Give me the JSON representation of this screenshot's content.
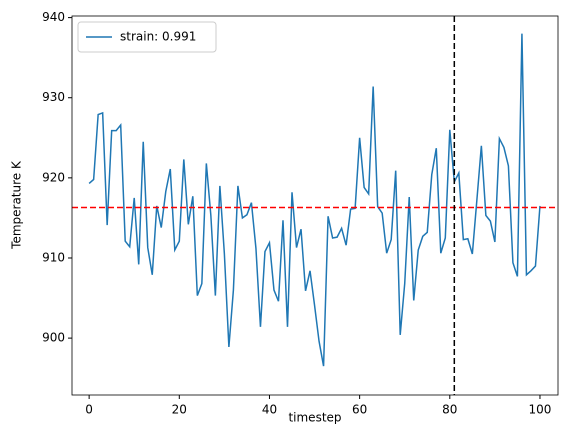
{
  "chart_data": {
    "type": "line",
    "x_label": "timestep",
    "y_label": "Temperature K",
    "x": [
      0,
      1,
      2,
      3,
      4,
      5,
      6,
      7,
      8,
      9,
      10,
      11,
      12,
      13,
      14,
      15,
      16,
      17,
      18,
      19,
      20,
      21,
      22,
      23,
      24,
      25,
      26,
      27,
      28,
      29,
      30,
      31,
      32,
      33,
      34,
      35,
      36,
      37,
      38,
      39,
      40,
      41,
      42,
      43,
      44,
      45,
      46,
      47,
      48,
      49,
      50,
      51,
      52,
      53,
      54,
      55,
      56,
      57,
      58,
      59,
      60,
      61,
      62,
      63,
      64,
      65,
      66,
      67,
      68,
      69,
      70,
      71,
      72,
      73,
      74,
      75,
      76,
      77,
      78,
      79,
      80,
      81,
      82,
      83,
      84,
      85,
      86,
      87,
      88,
      89,
      90,
      91,
      92,
      93,
      94,
      95,
      96,
      97,
      98,
      99,
      100
    ],
    "series": [
      {
        "name": "strain: 0.991",
        "color": "#1f77b4",
        "values": [
          919.3,
          919.8,
          927.9,
          928.1,
          914.1,
          925.9,
          925.9,
          926.6,
          912.1,
          911.4,
          917.5,
          909.2,
          924.5,
          911.3,
          907.9,
          916.5,
          913.8,
          918.3,
          921.1,
          911.0,
          912.1,
          922.3,
          914.2,
          917.7,
          905.3,
          906.8,
          921.8,
          915.3,
          905.3,
          919.0,
          910.5,
          898.9,
          906.0,
          919.0,
          915.0,
          915.4,
          916.9,
          911.2,
          901.4,
          910.8,
          911.9,
          906.0,
          904.6,
          914.7,
          901.4,
          918.2,
          911.3,
          913.6,
          905.9,
          908.4,
          904.1,
          899.6,
          896.5,
          915.2,
          912.5,
          912.6,
          913.7,
          911.6,
          916.1,
          916.2,
          925.0,
          918.8,
          918.0,
          931.4,
          916.4,
          915.6,
          910.6,
          912.3,
          920.9,
          900.4,
          906.8,
          917.6,
          904.7,
          911.0,
          912.7,
          913.2,
          920.4,
          923.7,
          910.6,
          912.5,
          926.0,
          919.5,
          920.6,
          912.3,
          912.4,
          910.5,
          917.2,
          924.0,
          915.3,
          914.6,
          912.0,
          924.9,
          923.8,
          921.5,
          909.4,
          907.7,
          938.0,
          907.9,
          908.4,
          909.0,
          916.5
        ]
      }
    ],
    "hline": {
      "value": 916.3,
      "color": "#ff0000"
    },
    "vline": {
      "value": 81,
      "color": "#000000"
    },
    "xlim": [
      -3.8,
      104
    ],
    "ylim": [
      892.9,
      940.2
    ],
    "xticks": [
      0,
      20,
      40,
      60,
      80,
      100
    ],
    "yticks": [
      900,
      910,
      920,
      930,
      940
    ],
    "legend": "upper left"
  }
}
